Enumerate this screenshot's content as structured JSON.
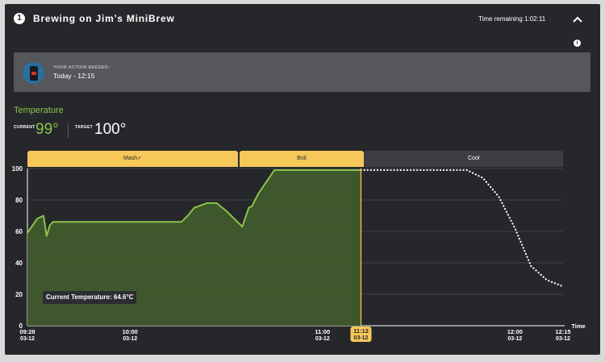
{
  "header": {
    "step_number": "1",
    "title": "Brewing on Jim’s MiniBrew",
    "time_remaining": "Time remaining 1:02:11",
    "collapse_icon": "chevron-up-icon",
    "info_icon": "info-icon"
  },
  "action": {
    "label": "YOUR ACTION NEEDED:",
    "value": "Today - 12:15"
  },
  "temperature": {
    "heading": "Temperature",
    "current_label": "CURRENT",
    "current_value": "99°",
    "target_label": "TARGET",
    "target_value": "100°"
  },
  "phases": [
    {
      "label": "Mash",
      "done": true
    },
    {
      "label": "Boil",
      "done": false
    },
    {
      "label": "Cool",
      "done": false
    }
  ],
  "tooltip": "Current Temperature: 64.6°C",
  "colors": {
    "panel": "#26272b",
    "accent_green": "#8bc34a",
    "phase_yellow": "#f6c85a",
    "area_fill": "#3f5a2c",
    "dotted_projection": "#ffffff"
  },
  "chart_data": {
    "type": "area",
    "y_ticks": [
      0,
      20,
      40,
      60,
      80,
      100
    ],
    "ylim": [
      0,
      100
    ],
    "x_axis_label": "Time",
    "x_ticks": [
      {
        "time": "09:28",
        "date": "03-12"
      },
      {
        "time": "10:00",
        "date": "03-12"
      },
      {
        "time": "11:00",
        "date": "03-12"
      },
      {
        "time": "11:12",
        "date": "03-12",
        "current": true
      },
      {
        "time": "12:00",
        "date": "03-12"
      },
      {
        "time": "12:15",
        "date": "03-12"
      }
    ],
    "series": [
      {
        "name": "actual",
        "x": [
          "09:28",
          "09:31",
          "09:33",
          "09:34",
          "09:35",
          "09:36",
          "09:40",
          "09:50",
          "10:00",
          "10:10",
          "10:16",
          "10:18",
          "10:20",
          "10:24",
          "10:27",
          "10:30",
          "10:35",
          "10:37",
          "10:38",
          "10:40",
          "10:45",
          "10:50",
          "11:00",
          "11:12"
        ],
        "y": [
          59,
          68,
          70,
          57,
          64,
          66,
          66,
          66,
          66,
          66,
          66,
          70,
          75,
          78,
          78,
          73,
          63,
          75,
          76,
          84,
          99,
          99,
          99,
          99
        ]
      },
      {
        "name": "projected",
        "x": [
          "11:12",
          "11:30",
          "11:45",
          "11:50",
          "11:55",
          "12:00",
          "12:05",
          "12:10",
          "12:15"
        ],
        "y": [
          99,
          99,
          99,
          94,
          82,
          62,
          38,
          29,
          25
        ]
      }
    ]
  }
}
